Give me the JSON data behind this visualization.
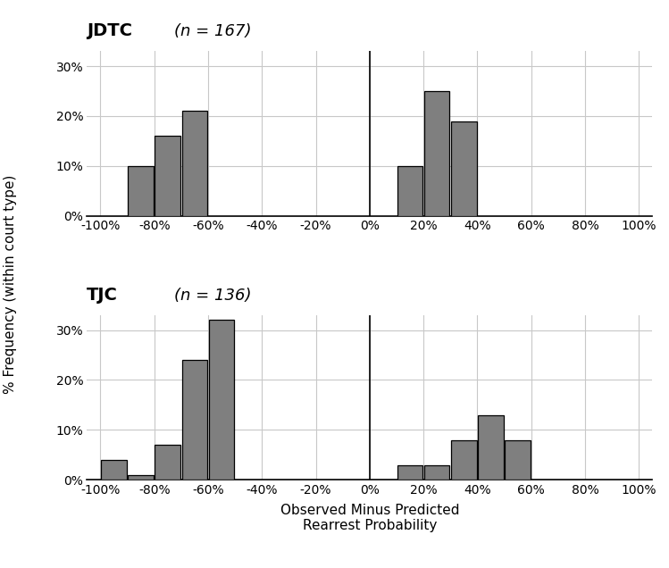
{
  "bar_color": "#7f7f7f",
  "bar_edge_color": "#000000",
  "ylabel": "% Frequency (within court type)",
  "xlabel_line1": "Observed Minus Predicted",
  "xlabel_line2": "Rearrest Probability",
  "xlim": [
    -105,
    105
  ],
  "xticks": [
    -100,
    -80,
    -60,
    -40,
    -20,
    0,
    20,
    40,
    60,
    80,
    100
  ],
  "xtick_labels": [
    "-100%",
    "-80%",
    "-60%",
    "-40%",
    "-20%",
    "0%",
    "20%",
    "40%",
    "60%",
    "80%",
    "100%"
  ],
  "yticks": [
    0,
    10,
    20,
    30
  ],
  "ytick_labels": [
    "0%",
    "10%",
    "20%",
    "30%"
  ],
  "ylim": [
    0,
    33
  ],
  "bin_width": 10,
  "jdtc_bold": "JDTC",
  "jdtc_italic": "(n = 167)",
  "tjc_bold": "TJC",
  "tjc_italic": "(n = 136)",
  "jdtc_centers": [
    -85,
    -75,
    -65,
    15,
    25,
    35
  ],
  "jdtc_heights": [
    10,
    16,
    21,
    10,
    25,
    19
  ],
  "tjc_centers": [
    -95,
    -85,
    -75,
    -65,
    -55,
    15,
    25,
    35,
    45,
    55
  ],
  "tjc_heights": [
    4,
    1,
    7,
    24,
    32,
    3,
    3,
    8,
    13,
    8
  ],
  "vline_x": 0,
  "background_color": "#ffffff",
  "grid_color": "#c8c8c8",
  "title_bold_fontsize": 14,
  "title_italic_fontsize": 13,
  "tick_fontsize": 10,
  "ylabel_fontsize": 11,
  "xlabel_fontsize": 11
}
